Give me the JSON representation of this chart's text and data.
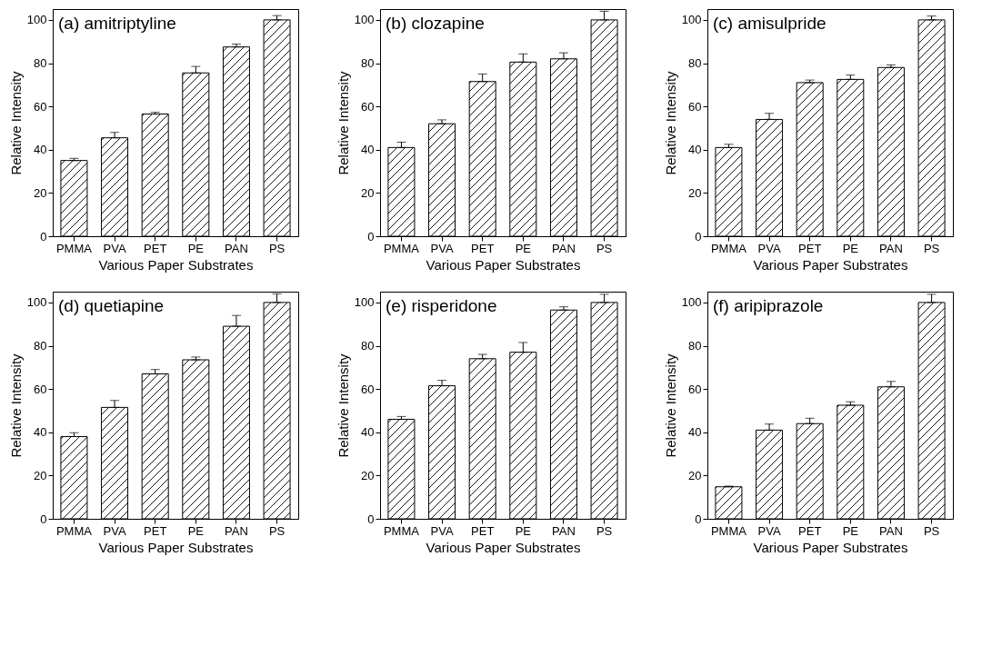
{
  "chart_data": [
    {
      "type": "bar",
      "title": "(a) amitriptyline",
      "xlabel": "Various Paper Substrates",
      "ylabel": "Relative Intensity",
      "categories": [
        "PMMA",
        "PVA",
        "PET",
        "PE",
        "PAN",
        "PS"
      ],
      "values": [
        35,
        45.5,
        56.5,
        75.5,
        87.5,
        100
      ],
      "color": "#000000",
      "errors": [
        [
          35,
          36
        ],
        [
          45.5,
          48
        ],
        [
          56.5,
          57.3
        ],
        [
          75.5,
          78.5
        ],
        [
          87.5,
          88.8
        ],
        [
          100,
          102
        ]
      ],
      "ylim": [
        0,
        105
      ],
      "yticks": [
        0,
        20,
        40,
        60,
        80,
        100
      ]
    },
    {
      "type": "bar",
      "title": "(b) clozapine",
      "xlabel": "Various Paper Substrates",
      "ylabel": "Relative Intensity",
      "categories": [
        "PMMA",
        "PVA",
        "PET",
        "PE",
        "PAN",
        "PS"
      ],
      "values": [
        41,
        52,
        71.5,
        80.5,
        82,
        100
      ],
      "color": "#000000",
      "errors": [
        [
          41,
          43.5
        ],
        [
          52,
          53.8
        ],
        [
          71.5,
          75
        ],
        [
          80.5,
          84.3
        ],
        [
          82,
          84.8
        ],
        [
          100,
          104
        ]
      ],
      "ylim": [
        0,
        105
      ],
      "yticks": [
        0,
        20,
        40,
        60,
        80,
        100
      ]
    },
    {
      "type": "bar",
      "title": "(c) amisulpride",
      "xlabel": "Various Paper Substrates",
      "ylabel": "Relative Intensity",
      "categories": [
        "PMMA",
        "PVA",
        "PET",
        "PE",
        "PAN",
        "PS"
      ],
      "values": [
        41,
        54,
        71,
        72.5,
        78,
        100
      ],
      "color": "#000000",
      "errors": [
        [
          41,
          42.5
        ],
        [
          54,
          56.8
        ],
        [
          71,
          72.2
        ],
        [
          72.5,
          74.5
        ],
        [
          78,
          79.2
        ],
        [
          100,
          101.8
        ]
      ],
      "ylim": [
        0,
        105
      ],
      "yticks": [
        0,
        20,
        40,
        60,
        80,
        100
      ]
    },
    {
      "type": "bar",
      "title": "(d) quetiapine",
      "xlabel": "Various Paper Substrates",
      "ylabel": "Relative Intensity",
      "categories": [
        "PMMA",
        "PVA",
        "PET",
        "PE",
        "PAN",
        "PS"
      ],
      "values": [
        38,
        51.5,
        67,
        73.5,
        89,
        100
      ],
      "color": "#000000",
      "errors": [
        [
          38,
          39.8
        ],
        [
          51.5,
          54.7
        ],
        [
          67,
          69
        ],
        [
          73.5,
          74.8
        ],
        [
          89,
          94
        ],
        [
          100,
          104
        ]
      ],
      "ylim": [
        0,
        105
      ],
      "yticks": [
        0,
        20,
        40,
        60,
        80,
        100
      ]
    },
    {
      "type": "bar",
      "title": "(e) risperidone",
      "xlabel": "Various Paper Substrates",
      "ylabel": "Relative Intensity",
      "categories": [
        "PMMA",
        "PVA",
        "PET",
        "PE",
        "PAN",
        "PS"
      ],
      "values": [
        46,
        61.5,
        74,
        77,
        96.5,
        100
      ],
      "color": "#000000",
      "errors": [
        [
          46,
          47.3
        ],
        [
          61.5,
          64
        ],
        [
          74,
          76
        ],
        [
          77,
          81.5
        ],
        [
          96.5,
          98
        ],
        [
          100,
          103.8
        ]
      ],
      "ylim": [
        0,
        105
      ],
      "yticks": [
        0,
        20,
        40,
        60,
        80,
        100
      ]
    },
    {
      "type": "bar",
      "title": "(f) aripiprazole",
      "xlabel": "Various Paper Substrates",
      "ylabel": "Relative Intensity",
      "categories": [
        "PMMA",
        "PVA",
        "PET",
        "PE",
        "PAN",
        "PS"
      ],
      "values": [
        14.8,
        41,
        44,
        52.5,
        61,
        100
      ],
      "color": "#000000",
      "errors": [
        [
          14.8,
          15.1
        ],
        [
          41,
          43.8
        ],
        [
          44,
          46.5
        ],
        [
          52.5,
          54.1
        ],
        [
          61,
          63.5
        ],
        [
          100,
          103.8
        ]
      ],
      "ylim": [
        0,
        105
      ],
      "yticks": [
        0,
        20,
        40,
        60,
        80,
        100
      ]
    }
  ]
}
